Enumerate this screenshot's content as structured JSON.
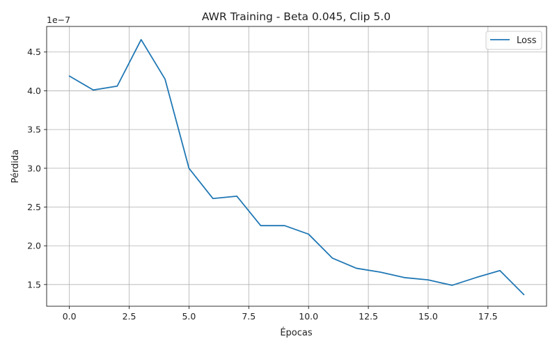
{
  "chart_data": {
    "type": "line",
    "title": "AWR Training - Beta 0.045, Clip 5.0",
    "xlabel": "Épocas",
    "ylabel": "Pérdida",
    "y_offset_label": "1e−7",
    "xlim": [
      -0.95,
      19.95
    ],
    "ylim": [
      1.22,
      4.83
    ],
    "x_ticks": [
      0.0,
      2.5,
      5.0,
      7.5,
      10.0,
      12.5,
      15.0,
      17.5
    ],
    "x_tick_labels": [
      "0.0",
      "2.5",
      "5.0",
      "7.5",
      "10.0",
      "12.5",
      "15.0",
      "17.5"
    ],
    "y_ticks": [
      1.5,
      2.0,
      2.5,
      3.0,
      3.5,
      4.0,
      4.5
    ],
    "y_tick_labels": [
      "1.5",
      "2.0",
      "2.5",
      "3.0",
      "3.5",
      "4.0",
      "4.5"
    ],
    "grid": true,
    "legend_position": "top-right",
    "series": [
      {
        "name": "Loss",
        "color": "#1f77b4",
        "x": [
          0,
          1,
          2,
          3,
          4,
          5,
          6,
          7,
          8,
          9,
          10,
          11,
          12,
          13,
          14,
          15,
          16,
          17,
          18,
          19
        ],
        "values": [
          4.19,
          4.01,
          4.06,
          4.66,
          4.15,
          3.0,
          2.61,
          2.64,
          2.26,
          2.26,
          2.15,
          1.84,
          1.71,
          1.66,
          1.59,
          1.56,
          1.49,
          1.59,
          1.68,
          1.37
        ]
      }
    ]
  }
}
